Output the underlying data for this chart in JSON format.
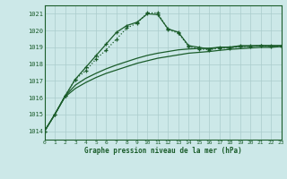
{
  "title": "Graphe pression niveau de la mer (hPa)",
  "bg_color": "#cce8e8",
  "grid_color": "#aacccc",
  "line_color": "#1a5c2a",
  "xlim": [
    0,
    23
  ],
  "ylim": [
    1013.5,
    1021.5
  ],
  "yticks": [
    1014,
    1015,
    1016,
    1017,
    1018,
    1019,
    1020,
    1021
  ],
  "xticks": [
    0,
    1,
    2,
    3,
    4,
    5,
    6,
    7,
    8,
    9,
    10,
    11,
    12,
    13,
    14,
    15,
    16,
    17,
    18,
    19,
    20,
    21,
    22,
    23
  ],
  "series": {
    "main": {
      "x": [
        0,
        1,
        2,
        3,
        4,
        5,
        6,
        7,
        8,
        9,
        10,
        11,
        12,
        13,
        14,
        15,
        16,
        17,
        18,
        19,
        20,
        21,
        22,
        23
      ],
      "y": [
        1014.0,
        1015.0,
        1016.1,
        1017.1,
        1017.8,
        1018.5,
        1019.2,
        1019.9,
        1020.3,
        1020.5,
        1021.0,
        1020.95,
        1020.1,
        1019.9,
        1019.1,
        1019.0,
        1018.9,
        1019.0,
        1019.0,
        1019.1,
        1019.1,
        1019.1,
        1019.1,
        1019.1
      ]
    },
    "dotted_upper": {
      "x": [
        0,
        1,
        2,
        3,
        4,
        5,
        6,
        7,
        8,
        9,
        10,
        11,
        12,
        13,
        14,
        15,
        16,
        17,
        18,
        19,
        20,
        21,
        22,
        23
      ],
      "y": [
        1014.0,
        1015.0,
        1016.1,
        1017.1,
        1017.6,
        1018.3,
        1018.85,
        1019.5,
        1020.15,
        1020.45,
        1021.05,
        1021.05,
        1020.05,
        1019.85,
        1019.05,
        1018.9,
        1018.85,
        1018.95,
        1018.95,
        1019.05,
        1019.05,
        1019.1,
        1019.05,
        1019.05
      ]
    },
    "smooth_lower": {
      "x": [
        0,
        1,
        2,
        3,
        4,
        5,
        6,
        7,
        8,
        9,
        10,
        11,
        12,
        13,
        14,
        15,
        16,
        17,
        18,
        19,
        20,
        21,
        22,
        23
      ],
      "y": [
        1014.0,
        1015.0,
        1016.05,
        1016.55,
        1016.9,
        1017.2,
        1017.45,
        1017.65,
        1017.85,
        1018.05,
        1018.2,
        1018.35,
        1018.45,
        1018.55,
        1018.65,
        1018.7,
        1018.75,
        1018.82,
        1018.88,
        1018.92,
        1018.96,
        1019.0,
        1019.0,
        1019.05
      ]
    },
    "smooth_mid": {
      "x": [
        0,
        1,
        2,
        3,
        4,
        5,
        6,
        7,
        8,
        9,
        10,
        11,
        12,
        13,
        14,
        15,
        16,
        17,
        18,
        19,
        20,
        21,
        22,
        23
      ],
      "y": [
        1014.0,
        1015.0,
        1016.1,
        1016.75,
        1017.15,
        1017.45,
        1017.72,
        1017.95,
        1018.15,
        1018.35,
        1018.52,
        1018.65,
        1018.75,
        1018.85,
        1018.9,
        1018.93,
        1018.95,
        1019.0,
        1019.02,
        1019.05,
        1019.07,
        1019.1,
        1019.1,
        1019.1
      ]
    }
  }
}
